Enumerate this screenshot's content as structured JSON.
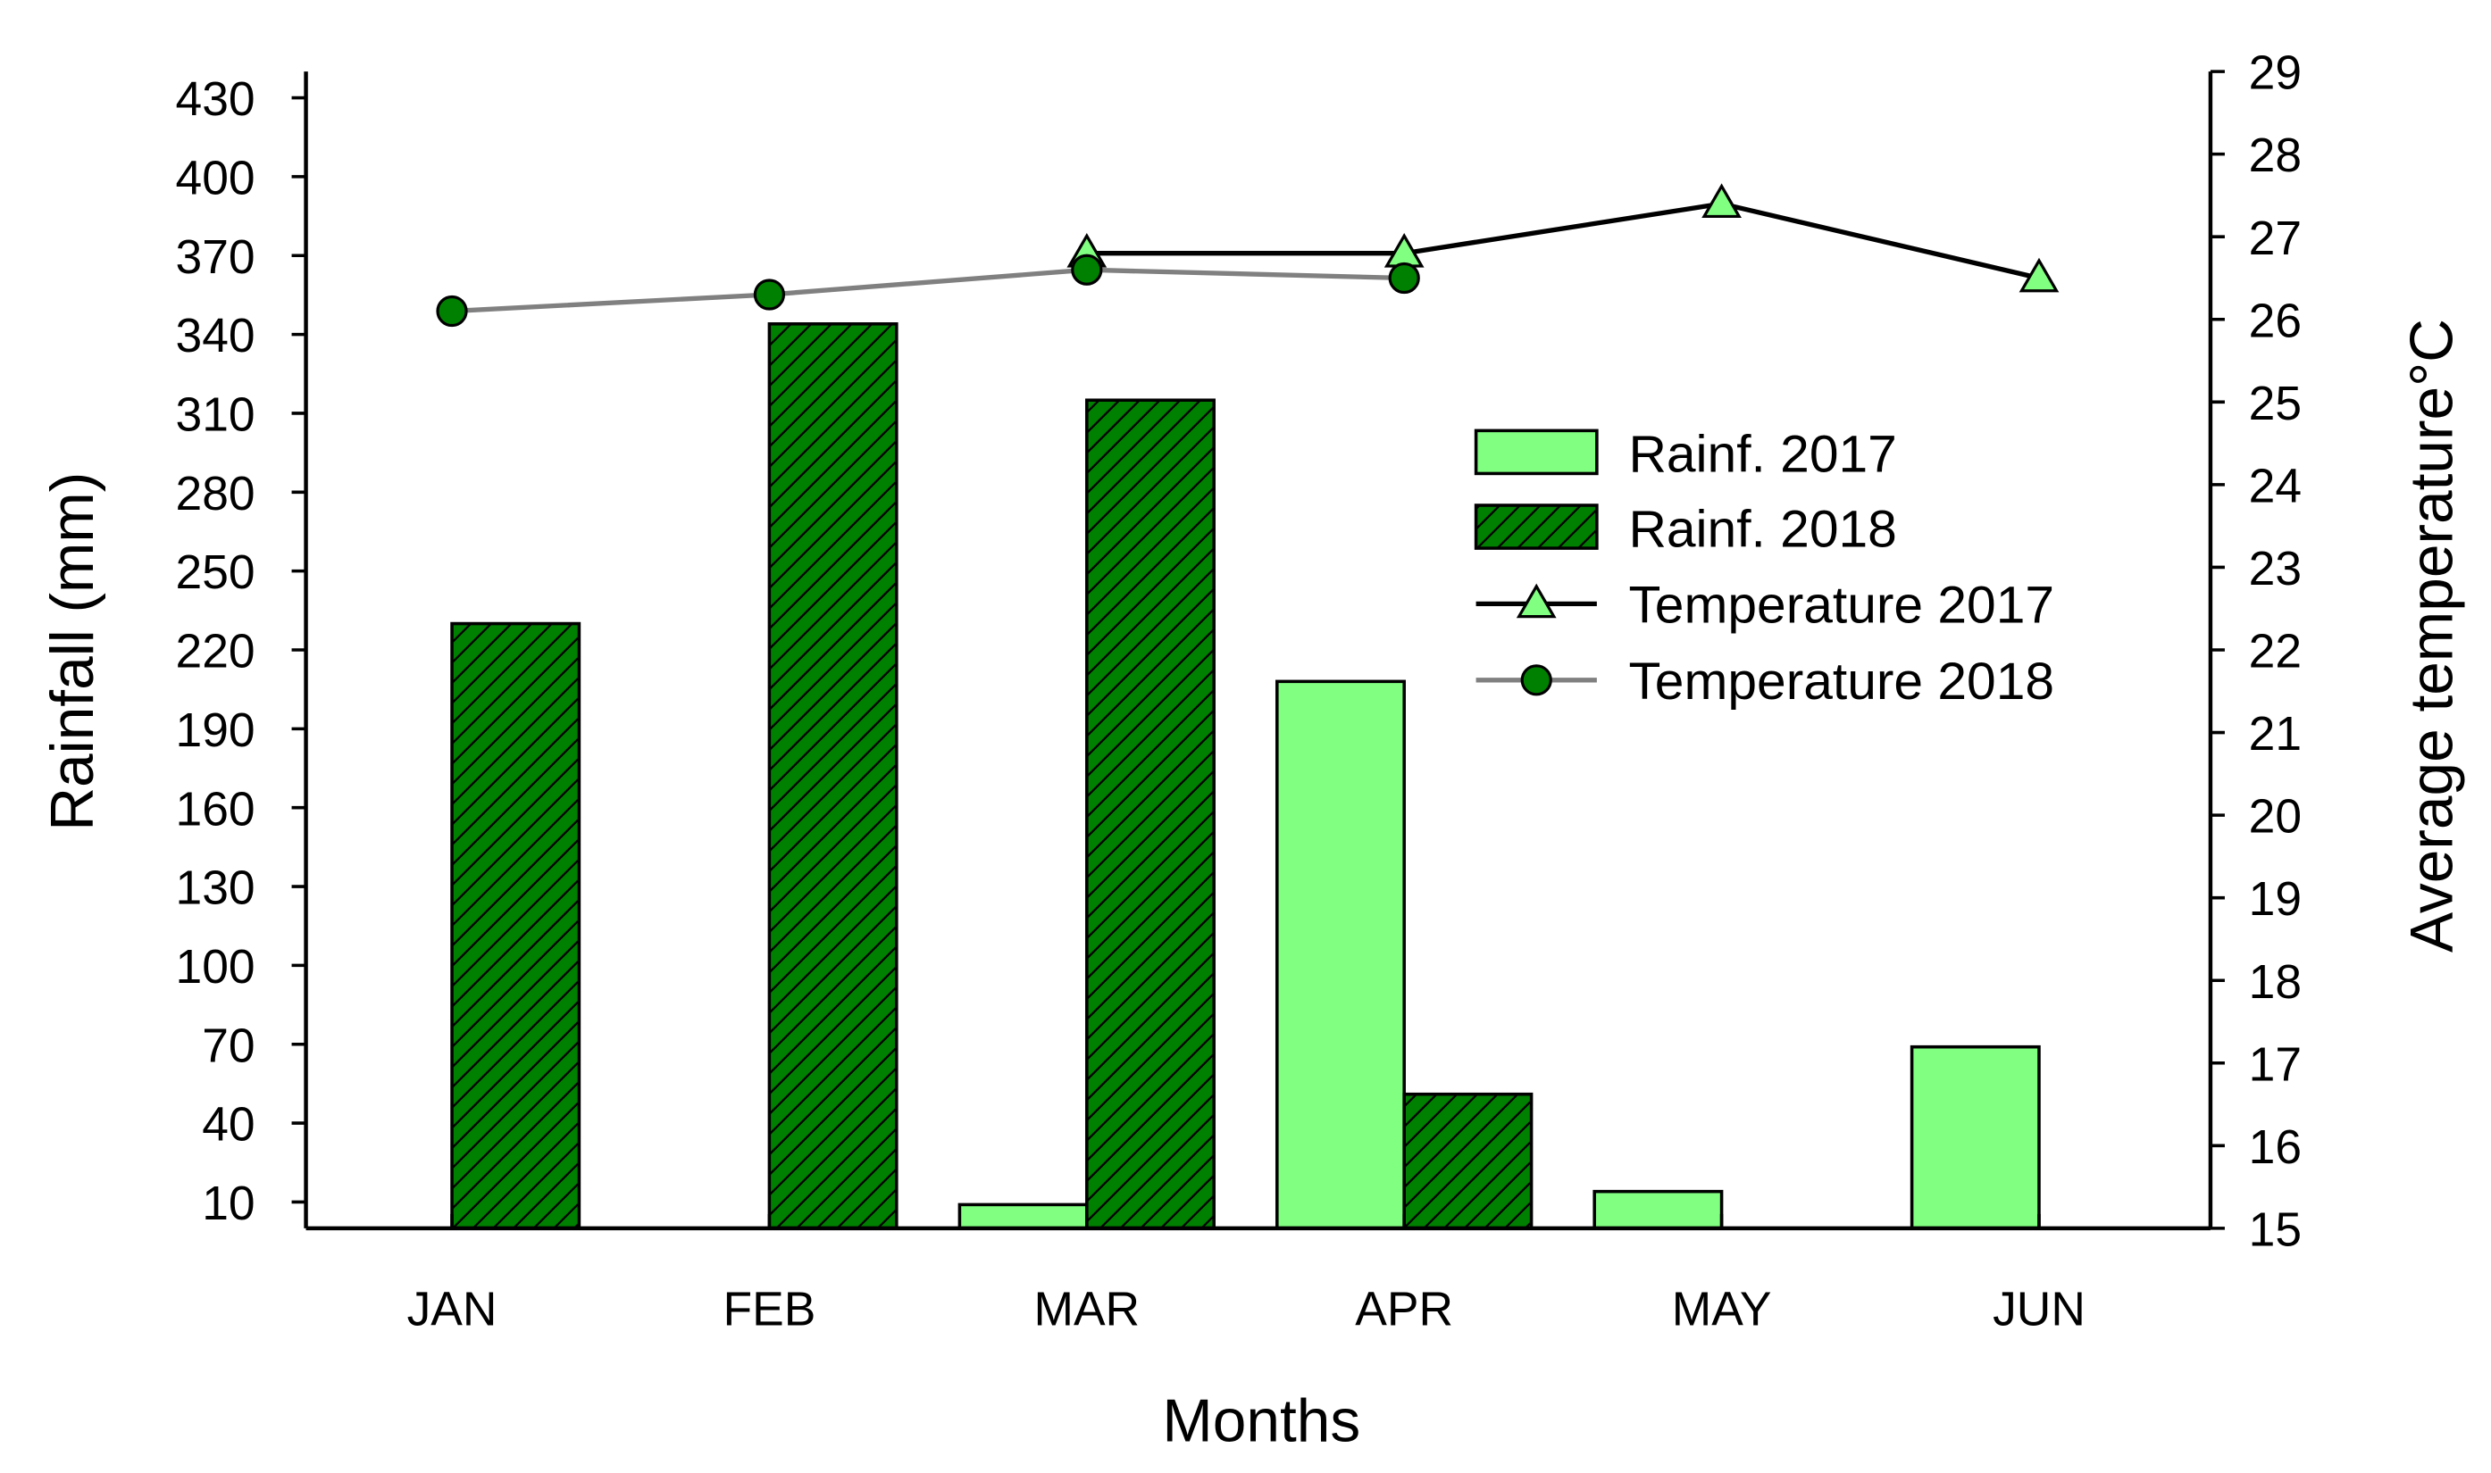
{
  "chart_data": {
    "type": "bar",
    "categories": [
      "JAN",
      "FEB",
      "MAR",
      "APR",
      "MAY",
      "JUN"
    ],
    "xlabel": "Months",
    "ylabel": "Rainfall (mm)",
    "y2label": "Average temperature°C",
    "ylim": [
      0,
      440
    ],
    "y2lim": [
      15,
      29
    ],
    "yticks": [
      10,
      40,
      70,
      100,
      130,
      160,
      190,
      220,
      250,
      280,
      310,
      340,
      370,
      400,
      430
    ],
    "y2ticks": [
      15,
      16,
      17,
      18,
      19,
      20,
      21,
      22,
      23,
      24,
      25,
      26,
      27,
      28,
      29
    ],
    "grid": false,
    "legend_position": "center-right",
    "bar_series": [
      {
        "name": "Rainf. 2017",
        "values": [
          0,
          0,
          9,
          208,
          14,
          69
        ],
        "color": "#80ff80",
        "pattern": "solid"
      },
      {
        "name": "Rainf. 2018",
        "values": [
          230,
          344,
          315,
          51,
          0,
          0
        ],
        "color": "#008000",
        "pattern": "hatch"
      }
    ],
    "line_series": [
      {
        "name": "Temperature 2017",
        "axis": "right",
        "values": [
          null,
          null,
          26.8,
          26.8,
          27.4,
          26.5
        ],
        "line_color": "#000000",
        "marker": "triangle",
        "marker_color": "#80ff80"
      },
      {
        "name": "Temperature 2018",
        "axis": "right",
        "values": [
          26.1,
          26.3,
          26.6,
          26.5,
          null,
          null
        ],
        "line_color": "#808080",
        "marker": "circle",
        "marker_color": "#008000"
      }
    ]
  }
}
